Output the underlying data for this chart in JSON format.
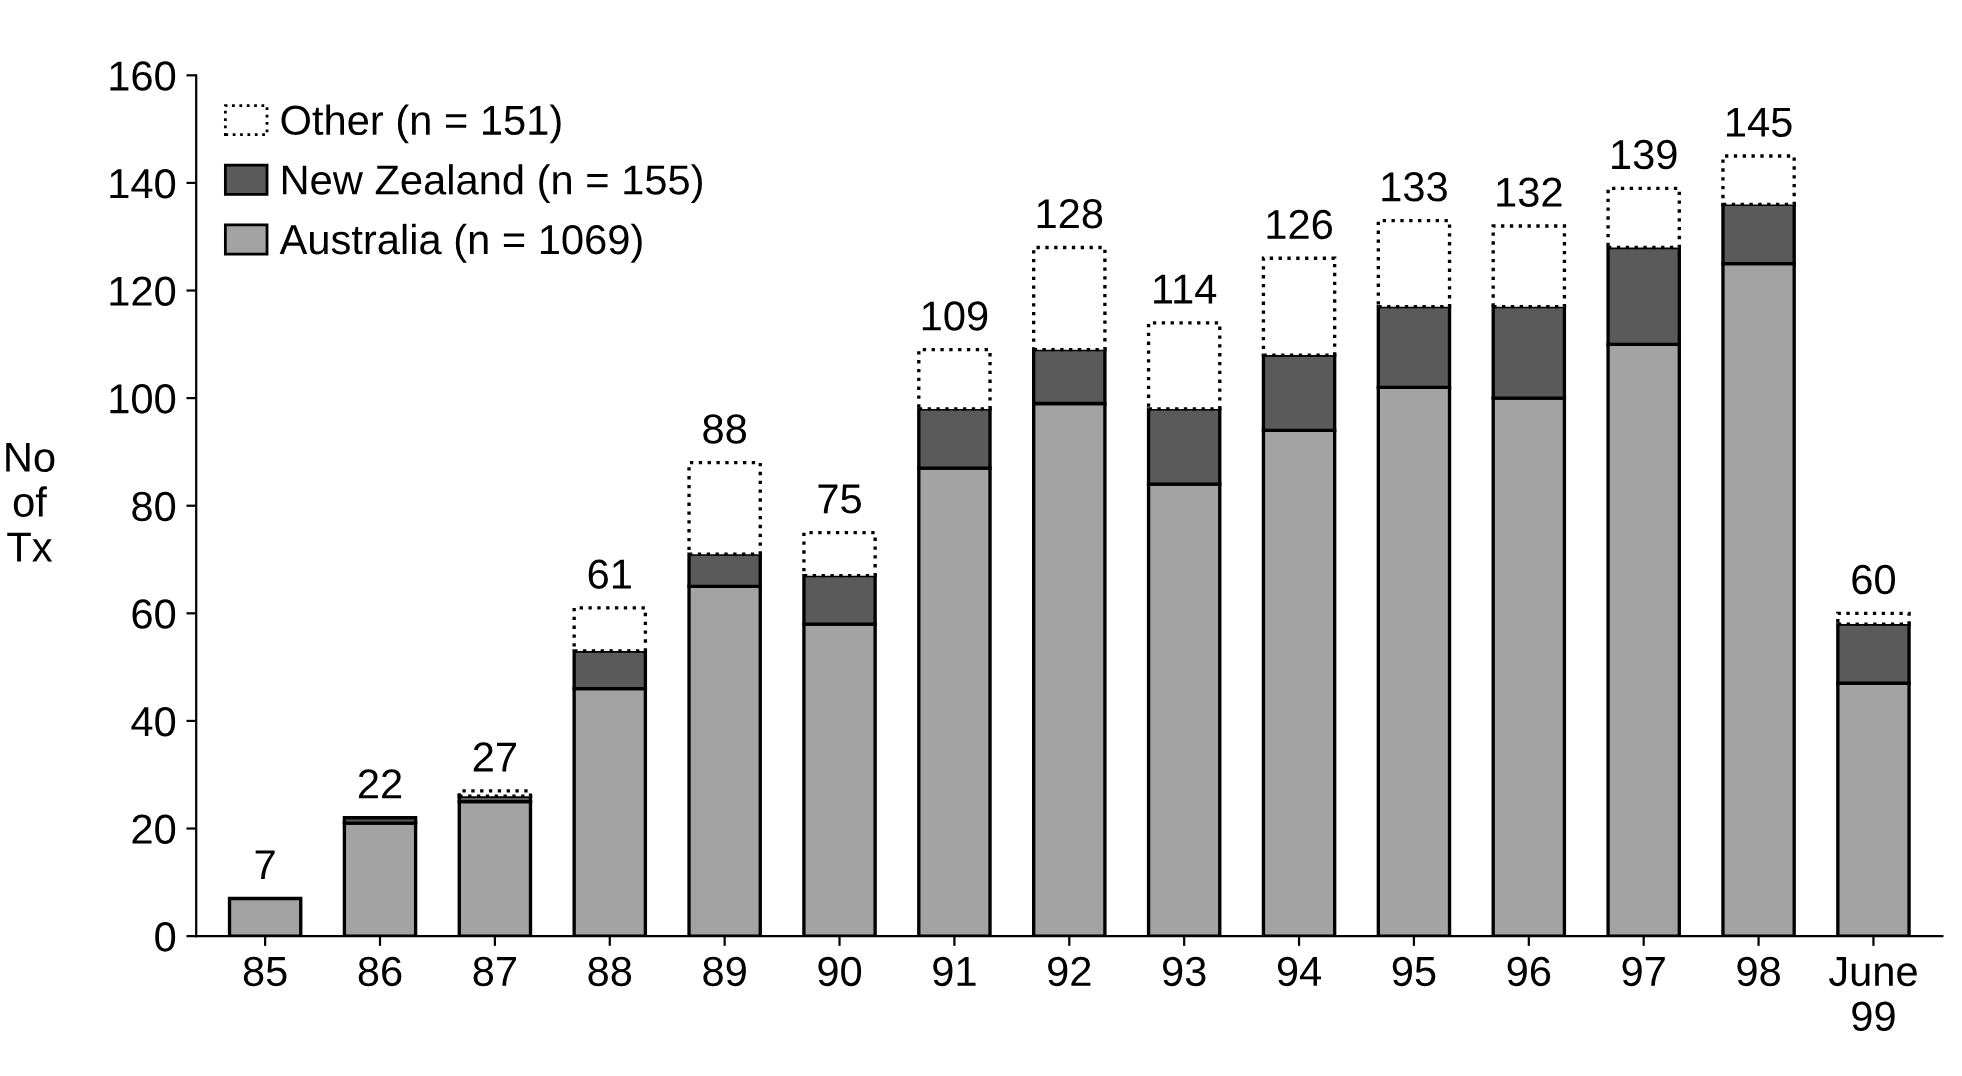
{
  "chart_data": {
    "type": "bar",
    "stacked": true,
    "ylabel": "No\nof\nTx",
    "categories": [
      "85",
      "86",
      "87",
      "88",
      "89",
      "90",
      "91",
      "92",
      "93",
      "94",
      "95",
      "96",
      "97",
      "98",
      "June\n99"
    ],
    "series": [
      {
        "name": "Australia (n = 1069)",
        "color": "#a3a3a3",
        "line_style": "solid",
        "values": [
          7,
          21,
          25,
          46,
          65,
          58,
          87,
          99,
          84,
          94,
          102,
          100,
          110,
          125,
          47
        ]
      },
      {
        "name": "New Zealand (n = 155)",
        "color": "#5a5a5a",
        "line_style": "solid",
        "values": [
          0,
          1,
          1,
          7,
          6,
          9,
          11,
          10,
          14,
          14,
          15,
          17,
          18,
          11,
          11
        ]
      },
      {
        "name": "Other (n = 151)",
        "color": "#ffffff",
        "line_style": "dotted",
        "values": [
          0,
          0,
          1,
          8,
          17,
          8,
          11,
          19,
          16,
          18,
          16,
          15,
          11,
          9,
          2
        ]
      }
    ],
    "totals": [
      "7",
      "22",
      "27",
      "61",
      "88",
      "75",
      "109",
      "128",
      "114",
      "126",
      "133",
      "132",
      "139",
      "145",
      "60"
    ],
    "ylim": [
      0,
      160
    ],
    "yticks": [
      0,
      20,
      40,
      60,
      80,
      100,
      120,
      140,
      160
    ],
    "grid": false,
    "legend": "top left"
  }
}
